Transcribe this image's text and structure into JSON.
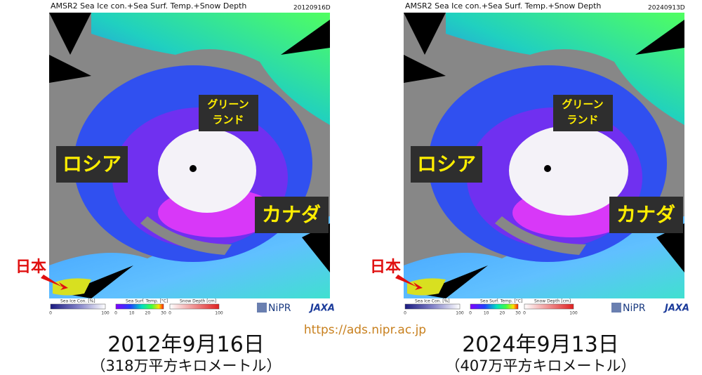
{
  "panels": [
    {
      "header": {
        "title": "AMSR2 Sea Ice con.+Sea Surf. Temp.+Snow Depth",
        "date": "20120916D"
      },
      "labels": {
        "greenland": [
          "グリーン",
          "ランド"
        ],
        "russia": "ロシア",
        "canada": "カナダ",
        "japan": "日本"
      },
      "legend": [
        {
          "title": "Sea Ice Con. [%]",
          "ticks": [
            "0",
            "100"
          ]
        },
        {
          "title": "Sea Surf. Temp. [°C]",
          "ticks": [
            "0",
            "10",
            "20",
            "30"
          ]
        },
        {
          "title": "Snow Depth [cm]",
          "ticks": [
            "0",
            "100"
          ]
        }
      ],
      "logos": {
        "nipr": "NiPR",
        "jaxa": "JAXA"
      },
      "caption": {
        "date": "2012年9月16日",
        "area": "（318万平方キロメートル）"
      }
    },
    {
      "header": {
        "title": "AMSR2 Sea Ice con.+Sea Surf. Temp.+Snow Depth",
        "date": "20240913D"
      },
      "labels": {
        "greenland": [
          "グリーン",
          "ランド"
        ],
        "russia": "ロシア",
        "canada": "カナダ",
        "japan": "日本"
      },
      "legend": [
        {
          "title": "Sea Ice Con. [%]",
          "ticks": [
            "0",
            "100"
          ]
        },
        {
          "title": "Sea Surf. Temp. [°C]",
          "ticks": [
            "0",
            "10",
            "20",
            "30"
          ]
        },
        {
          "title": "Snow Depth [cm]",
          "ticks": [
            "0",
            "100"
          ]
        }
      ],
      "logos": {
        "nipr": "NiPR",
        "jaxa": "JAXA"
      },
      "caption": {
        "date": "2024年9月13日",
        "area": "（407万平方キロメートル）"
      }
    }
  ],
  "url": "https://ads.nipr.ac.jp"
}
